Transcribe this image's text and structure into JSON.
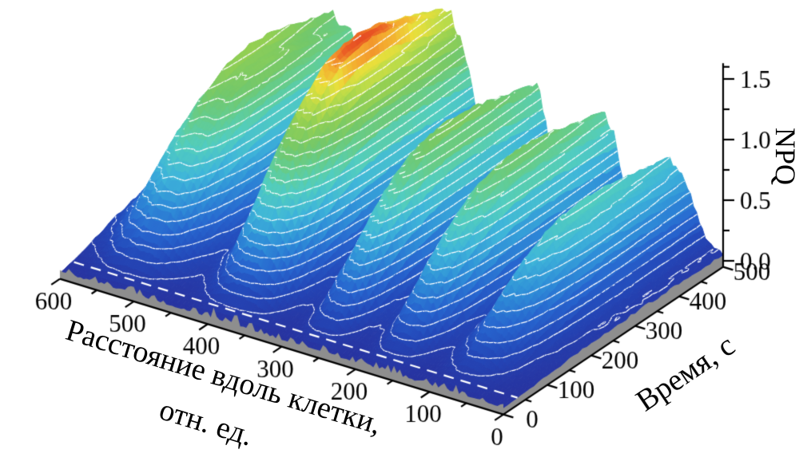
{
  "figure": {
    "kind": "3d-surface-plot",
    "background_color": "#ffffff"
  },
  "chart_data": {
    "type": "surface",
    "title": "",
    "xlabel": "Расстояние вдоль клетки, отн. ед.",
    "xlabel_lines": [
      "Расстояние вдоль клетки,",
      "отн. ед."
    ],
    "ylabel": "Время, с",
    "zlabel": "NPQ",
    "x_axis": {
      "name": "distance_along_cell_rel_units",
      "range": [
        0,
        600
      ],
      "ticks": [
        0,
        100,
        200,
        300,
        400,
        500,
        600
      ],
      "minor_step": 50
    },
    "y_axis": {
      "name": "time_s",
      "range": [
        0,
        500
      ],
      "ticks": [
        0,
        100,
        200,
        300,
        400,
        500
      ],
      "minor_step": 50
    },
    "z_axis": {
      "name": "NPQ",
      "range": [
        0,
        1.5
      ],
      "ticks": [
        0,
        0.5,
        1,
        1.5
      ],
      "tick_labels": [
        "0.0",
        "0.5",
        "1.0",
        "1.5"
      ],
      "minor_ticks": [
        0.25,
        0.75,
        1.25,
        1.6
      ]
    },
    "distance_samples": [
      0,
      25,
      50,
      75,
      100,
      125,
      150,
      175,
      200,
      225,
      250,
      275,
      300,
      325,
      350,
      375,
      400,
      425,
      450,
      475,
      500,
      525,
      550,
      575,
      600
    ],
    "npq_amplitude_profile": [
      0.06,
      0.18,
      0.62,
      0.8,
      0.42,
      0.24,
      0.92,
      1.0,
      0.34,
      0.3,
      1.08,
      0.9,
      0.26,
      0.42,
      1.25,
      1.55,
      1.38,
      0.6,
      0.28,
      0.55,
      1.05,
      1.2,
      1.0,
      0.52,
      0.28
    ],
    "time_samples": [
      0,
      50,
      100,
      150,
      200,
      250,
      300,
      350,
      400,
      450,
      500
    ],
    "npq_time_response": [
      0,
      0.18,
      0.45,
      0.68,
      0.85,
      0.96,
      1.0,
      0.99,
      0.95,
      0.9,
      0.86
    ],
    "surface_model": "NPQ(distance, time) ≈ npq_amplitude_profile(distance) × npq_time_response(time)",
    "peaks": [
      {
        "distance": 75,
        "max_npq": 0.8
      },
      {
        "distance": 170,
        "max_npq": 1.0
      },
      {
        "distance": 255,
        "max_npq": 1.08
      },
      {
        "distance": 380,
        "max_npq": 1.58
      },
      {
        "distance": 525,
        "max_npq": 1.22
      }
    ],
    "colormap_name": "rainbow-jet",
    "colormap_stops": [
      [
        0.0,
        "#2733a0"
      ],
      [
        0.1,
        "#2347b8"
      ],
      [
        0.2,
        "#2766cf"
      ],
      [
        0.3,
        "#2f8fd8"
      ],
      [
        0.4,
        "#3fb6d9"
      ],
      [
        0.5,
        "#52cdbf"
      ],
      [
        0.58,
        "#63cd92"
      ],
      [
        0.66,
        "#74c86a"
      ],
      [
        0.75,
        "#92cf53"
      ],
      [
        0.82,
        "#bcdc49"
      ],
      [
        0.88,
        "#ecdf3a"
      ],
      [
        0.93,
        "#f4a92f"
      ],
      [
        0.97,
        "#ea5a24"
      ],
      [
        1.0,
        "#d8251f"
      ]
    ],
    "colormap_max_npq": 1.62,
    "contour_lines": {
      "color": "#ffffff",
      "interval_npq": 0.08
    },
    "floor_dashed_line": {
      "color": "#ffffff",
      "time_s": 32
    },
    "base_wall_color": "#8e8e8e",
    "axis_color": "#000000",
    "legend": "none",
    "grid": "none"
  }
}
